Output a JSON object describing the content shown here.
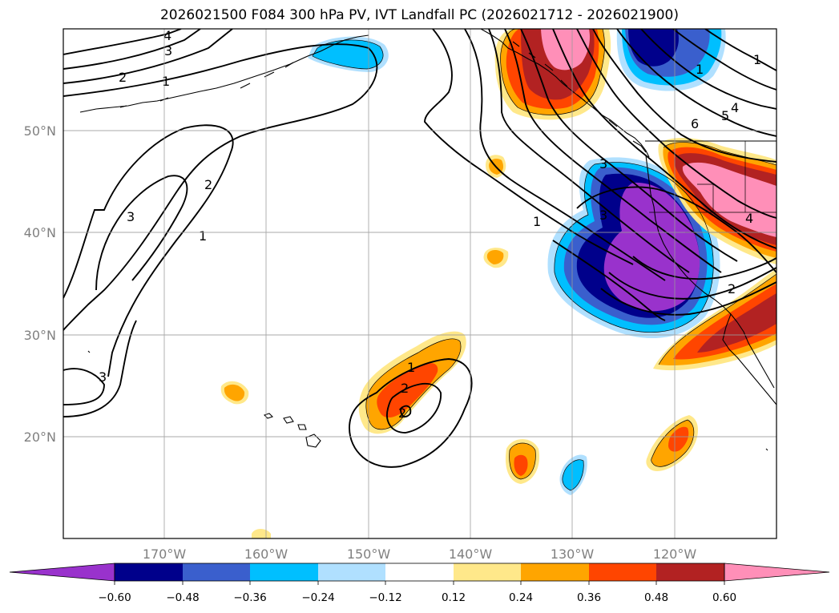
{
  "title": "2026021500 F084 300 hPa PV, IVT Landfall PC (2026021712 - 2026021900)",
  "axes": {
    "lat_labels": [
      "50°N",
      "40°N",
      "30°N",
      "20°N"
    ],
    "lon_labels": [
      "170°W",
      "160°W",
      "150°W",
      "140°W",
      "130°W",
      "120°W"
    ]
  },
  "colorbar": {
    "ticks": [
      "−0.60",
      "−0.48",
      "−0.36",
      "−0.24",
      "−0.12",
      "0.12",
      "0.24",
      "0.36",
      "0.48",
      "0.60"
    ],
    "colors": [
      "#9932cc",
      "#00008b",
      "#3a5fcd",
      "#00bfff",
      "#b0e0ff",
      "#ffffff",
      "#ffe88a",
      "#ffa500",
      "#ff4500",
      "#b22222",
      "#ff8fb8"
    ],
    "extend": "both"
  },
  "contour_labels": [
    "4",
    "3",
    "2",
    "1",
    "3",
    "2",
    "1",
    "3",
    "1",
    "2",
    "2",
    "1",
    "5",
    "6",
    "4",
    "3",
    "3",
    "4",
    "2",
    "1",
    "1"
  ],
  "map_features": {
    "land_outline": "coastlines",
    "grid": true
  }
}
